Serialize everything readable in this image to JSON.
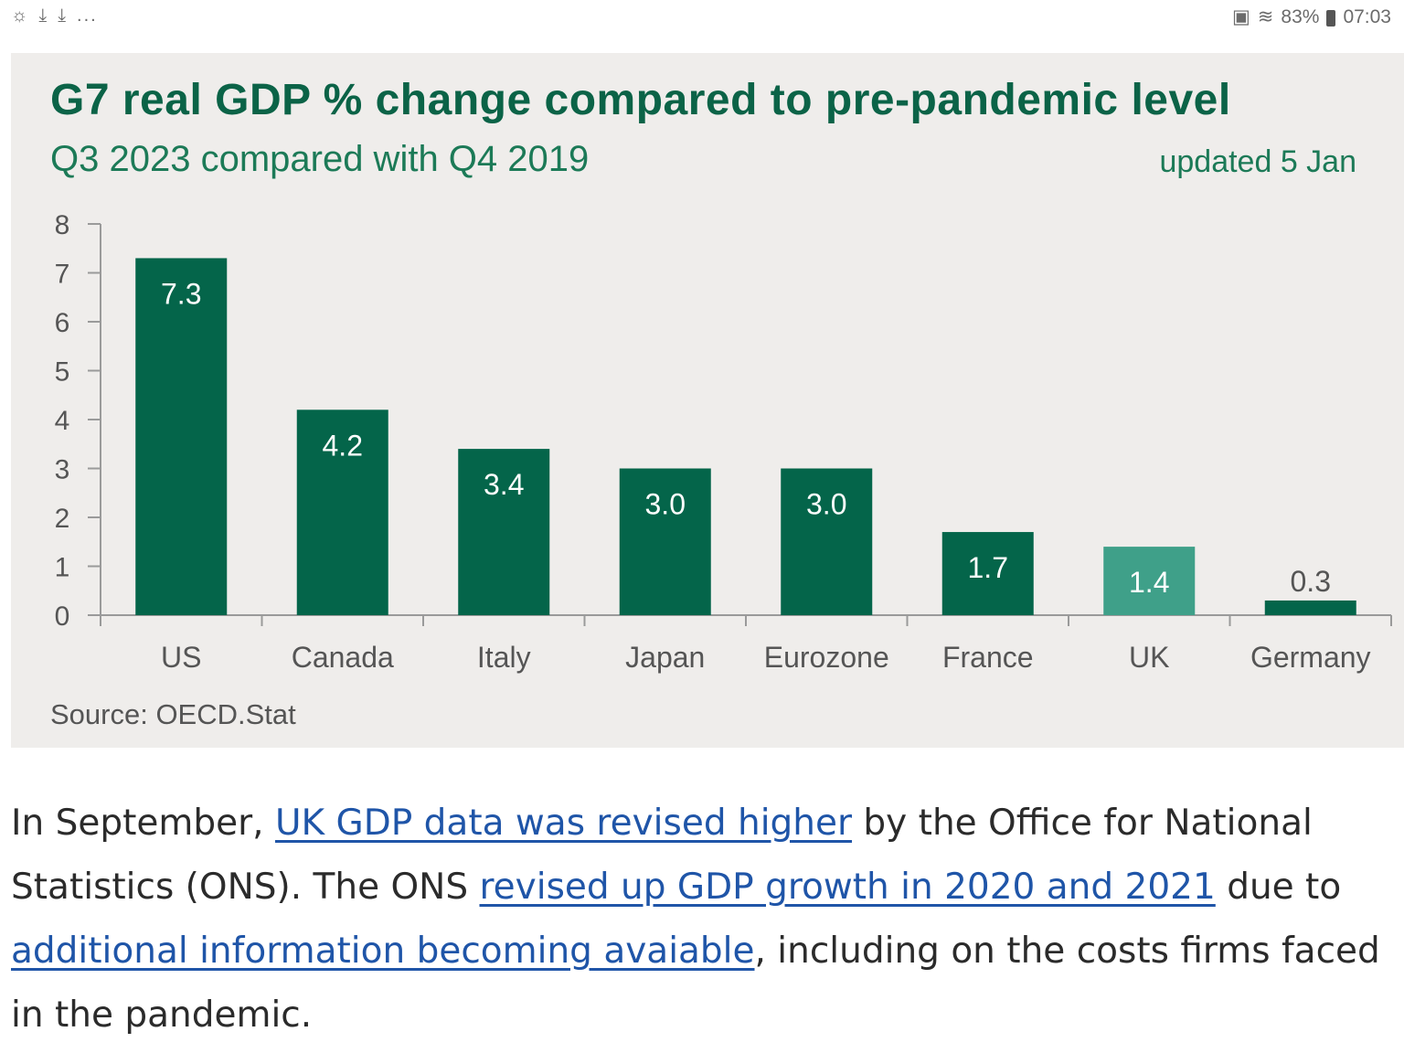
{
  "status_bar": {
    "left_icons": [
      "weather-icon",
      "download-icon",
      "download-icon",
      "more-icon"
    ],
    "more": "...",
    "battery": "83%",
    "time": "07:03"
  },
  "chart": {
    "title": "G7 real GDP % change compared to pre-pandemic level",
    "subtitle": "Q3 2023 compared with Q4 2019",
    "updated": "updated 5 Jan",
    "source": "Source: OECD.Stat"
  },
  "chart_data": {
    "type": "bar",
    "categories": [
      "US",
      "Canada",
      "Italy",
      "Japan",
      "Eurozone",
      "France",
      "UK",
      "Germany"
    ],
    "values": [
      7.3,
      4.2,
      3.4,
      3.0,
      3.0,
      1.7,
      1.4,
      0.3
    ],
    "data_labels": [
      "7.3",
      "4.2",
      "3.4",
      "3.0",
      "3.0",
      "1.7",
      "1.4",
      "0.3"
    ],
    "ylim": [
      0,
      8
    ],
    "yticks": [
      0,
      1,
      2,
      3,
      4,
      5,
      6,
      7,
      8
    ],
    "colors": {
      "default": "#04654a",
      "highlight": "#3fa089",
      "highlight_category": "UK"
    },
    "grid": false,
    "title": "G7 real GDP % change compared to pre-pandemic level",
    "xlabel": "",
    "ylabel": ""
  },
  "article": {
    "t1": "In September, ",
    "link1": "UK GDP data was revised higher",
    "t2": " by the Office for National Statistics (ONS). The ONS ",
    "link2": "revised up GDP growth in 2020 and 2021",
    "t3": " due to ",
    "link3": "additional information becoming avaiable",
    "t4": ", including on the costs firms faced in the pandemic."
  }
}
